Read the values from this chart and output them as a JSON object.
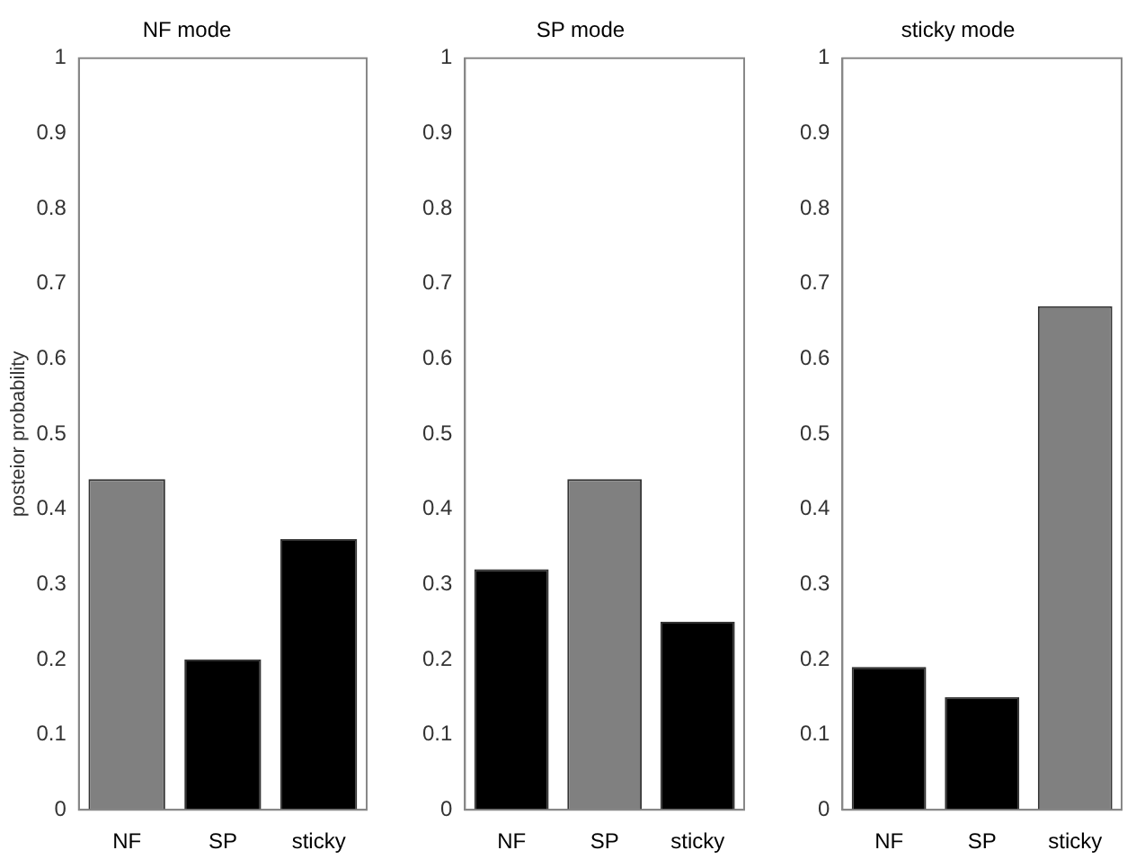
{
  "chart_data": [
    {
      "type": "bar",
      "title": "NF mode",
      "ylabel": "posteior probability",
      "categories": [
        "NF",
        "SP",
        "sticky"
      ],
      "values": [
        0.44,
        0.2,
        0.36
      ],
      "colors": [
        "#808080",
        "#000000",
        "#000000"
      ],
      "ylim": [
        0,
        1
      ],
      "yticks": [
        0,
        0.1,
        0.2,
        0.3,
        0.4,
        0.5,
        0.6,
        0.7,
        0.8,
        0.9,
        1
      ],
      "grid": false,
      "legend": false
    },
    {
      "type": "bar",
      "title": "SP mode",
      "categories": [
        "NF",
        "SP",
        "sticky"
      ],
      "values": [
        0.32,
        0.44,
        0.25
      ],
      "colors": [
        "#000000",
        "#808080",
        "#000000"
      ],
      "ylim": [
        0,
        1
      ],
      "yticks": [
        0,
        0.1,
        0.2,
        0.3,
        0.4,
        0.5,
        0.6,
        0.7,
        0.8,
        0.9,
        1
      ],
      "grid": false,
      "legend": false
    },
    {
      "type": "bar",
      "title": "sticky mode",
      "categories": [
        "NF",
        "SP",
        "sticky"
      ],
      "values": [
        0.19,
        0.15,
        0.67
      ],
      "colors": [
        "#000000",
        "#000000",
        "#808080"
      ],
      "ylim": [
        0,
        1
      ],
      "yticks": [
        0,
        0.1,
        0.2,
        0.3,
        0.4,
        0.5,
        0.6,
        0.7,
        0.8,
        0.9,
        1
      ],
      "grid": false,
      "legend": false
    }
  ]
}
